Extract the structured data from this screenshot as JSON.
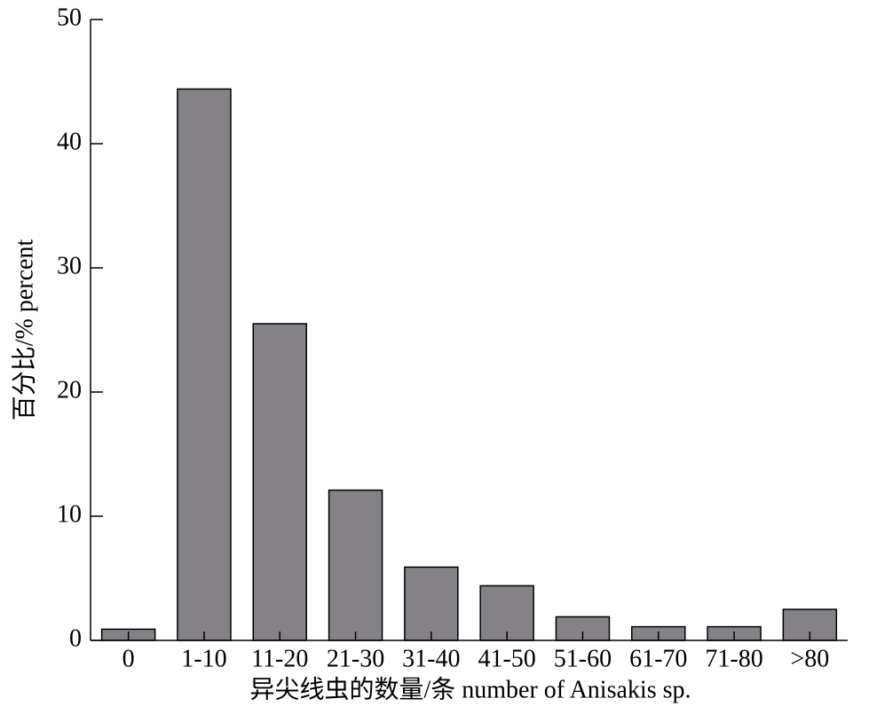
{
  "chart_data": {
    "type": "bar",
    "categories": [
      "0",
      "1-10",
      "11-20",
      "21-30",
      "31-40",
      "41-50",
      "51-60",
      "61-70",
      "71-80",
      ">80"
    ],
    "values": [
      0.9,
      44.4,
      25.5,
      12.1,
      5.9,
      4.4,
      1.9,
      1.1,
      1.1,
      2.5
    ],
    "color": "#848286",
    "ylim": [
      0,
      50
    ],
    "yticks": [
      0,
      10,
      20,
      30,
      40,
      50
    ],
    "y_label": "百分比/% percent",
    "x_label": "异尖线虫的数量/条 number of Anisakis sp."
  }
}
